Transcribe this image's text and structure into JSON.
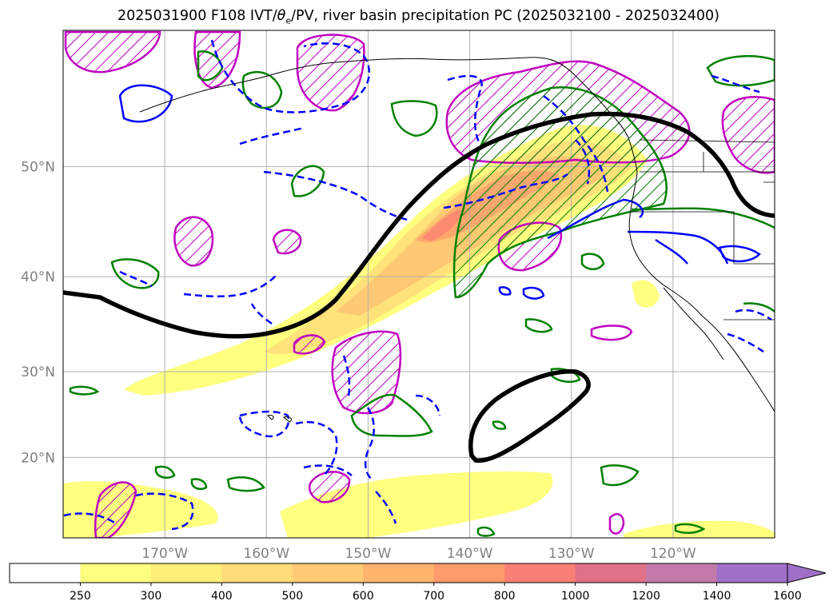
{
  "title": {
    "prefix": "2025031900 F108 IVT/",
    "theta": "θ",
    "theta_sub": "e",
    "suffix": "/PV, river basin precipitation PC (2025032100 - 2025032400)"
  },
  "map": {
    "lat_labels": [
      "50°N",
      "40°N",
      "30°N",
      "20°N"
    ],
    "lat_values": [
      50,
      40,
      30,
      20
    ],
    "lon_labels": [
      "170°W",
      "160°W",
      "150°W",
      "140°W",
      "130°W",
      "120°W"
    ],
    "lon_values": [
      -170,
      -160,
      -150,
      -140,
      -130,
      -120
    ],
    "extent": {
      "lon": [
        -180,
        -110
      ],
      "lat": [
        10,
        60
      ]
    },
    "grid": true,
    "label_color": "#808080",
    "contour_colors": {
      "ivt_line": "#000000",
      "green": "#008000",
      "blue": "#0000ff",
      "magenta": "#bf00bf"
    }
  },
  "colorbar": {
    "ticks": [
      "250",
      "300",
      "400",
      "500",
      "600",
      "700",
      "800",
      "1000",
      "1200",
      "1400",
      "1600"
    ],
    "colors": [
      "#ffffff",
      "#ffff80",
      "#ffee7a",
      "#ffdc78",
      "#ffca73",
      "#ffb46e",
      "#ff9a6b",
      "#fa8075",
      "#e07085",
      "#c37aaa",
      "#a070c8"
    ],
    "extend": "max"
  }
}
